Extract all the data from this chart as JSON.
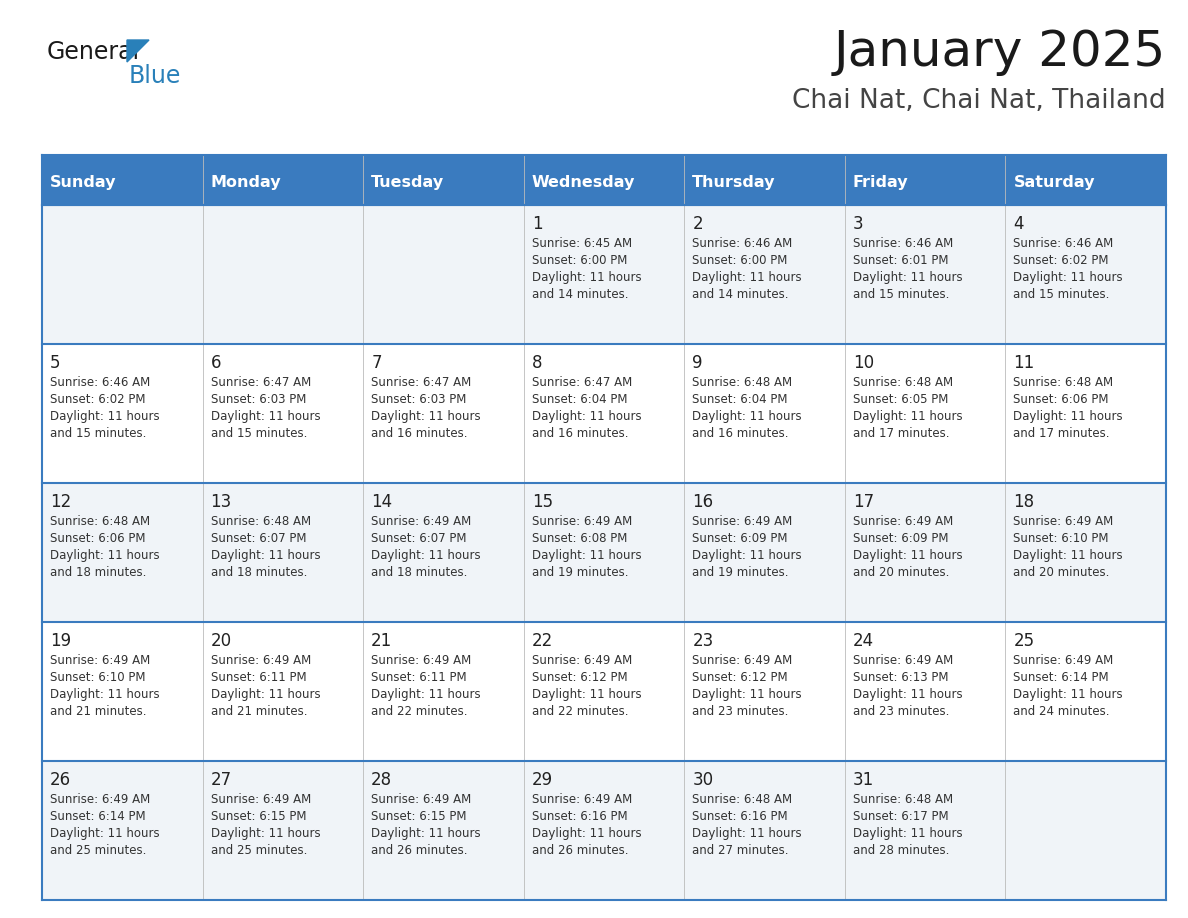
{
  "title": "January 2025",
  "subtitle": "Chai Nat, Chai Nat, Thailand",
  "days_of_week": [
    "Sunday",
    "Monday",
    "Tuesday",
    "Wednesday",
    "Thursday",
    "Friday",
    "Saturday"
  ],
  "header_bg": "#3a7bbf",
  "header_text": "#ffffff",
  "row_bg_odd": "#f0f4f8",
  "row_bg_even": "#ffffff",
  "border_color": "#3a7bbf",
  "cell_line_color": "#3a7bbf",
  "text_color": "#222222",
  "sub_text_color": "#333333",
  "calendar": [
    [
      {
        "day": null,
        "sunrise": null,
        "sunset": null,
        "daylight": null
      },
      {
        "day": null,
        "sunrise": null,
        "sunset": null,
        "daylight": null
      },
      {
        "day": null,
        "sunrise": null,
        "sunset": null,
        "daylight": null
      },
      {
        "day": 1,
        "sunrise": "6:45 AM",
        "sunset": "6:00 PM",
        "daylight": "11 hours and 14 minutes."
      },
      {
        "day": 2,
        "sunrise": "6:46 AM",
        "sunset": "6:00 PM",
        "daylight": "11 hours and 14 minutes."
      },
      {
        "day": 3,
        "sunrise": "6:46 AM",
        "sunset": "6:01 PM",
        "daylight": "11 hours and 15 minutes."
      },
      {
        "day": 4,
        "sunrise": "6:46 AM",
        "sunset": "6:02 PM",
        "daylight": "11 hours and 15 minutes."
      }
    ],
    [
      {
        "day": 5,
        "sunrise": "6:46 AM",
        "sunset": "6:02 PM",
        "daylight": "11 hours and 15 minutes."
      },
      {
        "day": 6,
        "sunrise": "6:47 AM",
        "sunset": "6:03 PM",
        "daylight": "11 hours and 15 minutes."
      },
      {
        "day": 7,
        "sunrise": "6:47 AM",
        "sunset": "6:03 PM",
        "daylight": "11 hours and 16 minutes."
      },
      {
        "day": 8,
        "sunrise": "6:47 AM",
        "sunset": "6:04 PM",
        "daylight": "11 hours and 16 minutes."
      },
      {
        "day": 9,
        "sunrise": "6:48 AM",
        "sunset": "6:04 PM",
        "daylight": "11 hours and 16 minutes."
      },
      {
        "day": 10,
        "sunrise": "6:48 AM",
        "sunset": "6:05 PM",
        "daylight": "11 hours and 17 minutes."
      },
      {
        "day": 11,
        "sunrise": "6:48 AM",
        "sunset": "6:06 PM",
        "daylight": "11 hours and 17 minutes."
      }
    ],
    [
      {
        "day": 12,
        "sunrise": "6:48 AM",
        "sunset": "6:06 PM",
        "daylight": "11 hours and 18 minutes."
      },
      {
        "day": 13,
        "sunrise": "6:48 AM",
        "sunset": "6:07 PM",
        "daylight": "11 hours and 18 minutes."
      },
      {
        "day": 14,
        "sunrise": "6:49 AM",
        "sunset": "6:07 PM",
        "daylight": "11 hours and 18 minutes."
      },
      {
        "day": 15,
        "sunrise": "6:49 AM",
        "sunset": "6:08 PM",
        "daylight": "11 hours and 19 minutes."
      },
      {
        "day": 16,
        "sunrise": "6:49 AM",
        "sunset": "6:09 PM",
        "daylight": "11 hours and 19 minutes."
      },
      {
        "day": 17,
        "sunrise": "6:49 AM",
        "sunset": "6:09 PM",
        "daylight": "11 hours and 20 minutes."
      },
      {
        "day": 18,
        "sunrise": "6:49 AM",
        "sunset": "6:10 PM",
        "daylight": "11 hours and 20 minutes."
      }
    ],
    [
      {
        "day": 19,
        "sunrise": "6:49 AM",
        "sunset": "6:10 PM",
        "daylight": "11 hours and 21 minutes."
      },
      {
        "day": 20,
        "sunrise": "6:49 AM",
        "sunset": "6:11 PM",
        "daylight": "11 hours and 21 minutes."
      },
      {
        "day": 21,
        "sunrise": "6:49 AM",
        "sunset": "6:11 PM",
        "daylight": "11 hours and 22 minutes."
      },
      {
        "day": 22,
        "sunrise": "6:49 AM",
        "sunset": "6:12 PM",
        "daylight": "11 hours and 22 minutes."
      },
      {
        "day": 23,
        "sunrise": "6:49 AM",
        "sunset": "6:12 PM",
        "daylight": "11 hours and 23 minutes."
      },
      {
        "day": 24,
        "sunrise": "6:49 AM",
        "sunset": "6:13 PM",
        "daylight": "11 hours and 23 minutes."
      },
      {
        "day": 25,
        "sunrise": "6:49 AM",
        "sunset": "6:14 PM",
        "daylight": "11 hours and 24 minutes."
      }
    ],
    [
      {
        "day": 26,
        "sunrise": "6:49 AM",
        "sunset": "6:14 PM",
        "daylight": "11 hours and 25 minutes."
      },
      {
        "day": 27,
        "sunrise": "6:49 AM",
        "sunset": "6:15 PM",
        "daylight": "11 hours and 25 minutes."
      },
      {
        "day": 28,
        "sunrise": "6:49 AM",
        "sunset": "6:15 PM",
        "daylight": "11 hours and 26 minutes."
      },
      {
        "day": 29,
        "sunrise": "6:49 AM",
        "sunset": "6:16 PM",
        "daylight": "11 hours and 26 minutes."
      },
      {
        "day": 30,
        "sunrise": "6:48 AM",
        "sunset": "6:16 PM",
        "daylight": "11 hours and 27 minutes."
      },
      {
        "day": 31,
        "sunrise": "6:48 AM",
        "sunset": "6:17 PM",
        "daylight": "11 hours and 28 minutes."
      },
      {
        "day": null,
        "sunrise": null,
        "sunset": null,
        "daylight": null
      }
    ]
  ],
  "logo_general_color": "#1a1a1a",
  "logo_blue_color": "#2980b9",
  "figsize": [
    11.88,
    9.18
  ],
  "dpi": 100
}
